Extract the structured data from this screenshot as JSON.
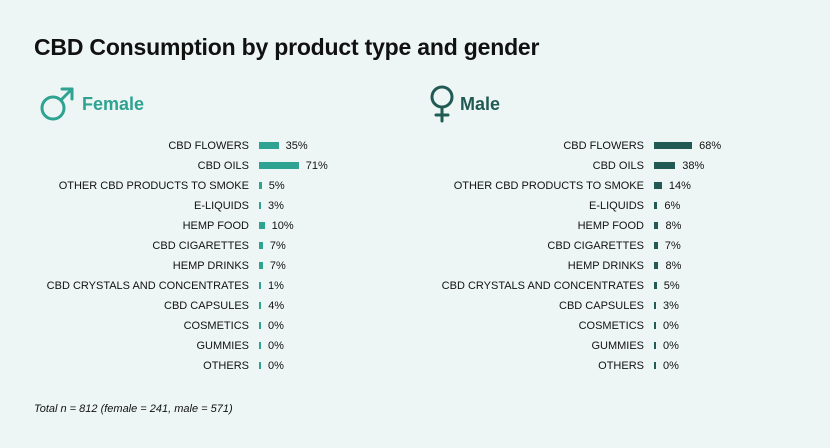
{
  "title": "CBD Consumption by product type and gender",
  "footnote": "Total n = 812 (female = 241, male = 571)",
  "chart_data": [
    {
      "type": "bar",
      "orientation": "horizontal",
      "panel_label": "Female",
      "icon": "mars-symbol-icon",
      "color": "#2fa391",
      "categories": [
        "CBD FLOWERS",
        "CBD OILS",
        "OTHER CBD PRODUCTS TO SMOKE",
        "E-LIQUIDS",
        "HEMP FOOD",
        "CBD CIGARETTES",
        "HEMP DRINKS",
        "CBD CRYSTALS AND CONCENTRATES",
        "CBD CAPSULES",
        "COSMETICS",
        "GUMMIES",
        "OTHERS"
      ],
      "values": [
        35,
        71,
        5,
        3,
        10,
        7,
        7,
        1,
        4,
        0,
        0,
        0
      ],
      "value_labels": [
        "35%",
        "71%",
        "5%",
        "3%",
        "10%",
        "7%",
        "7%",
        "1%",
        "4%",
        "0%",
        "0%",
        "0%"
      ],
      "xlim": [
        0,
        100
      ],
      "grid": false
    },
    {
      "type": "bar",
      "orientation": "horizontal",
      "panel_label": "Male",
      "icon": "venus-symbol-icon",
      "color": "#215a54",
      "categories": [
        "CBD FLOWERS",
        "CBD OILS",
        "OTHER CBD PRODUCTS TO SMOKE",
        "E-LIQUIDS",
        "HEMP FOOD",
        "CBD CIGARETTES",
        "HEMP DRINKS",
        "CBD CRYSTALS AND CONCENTRATES",
        "CBD CAPSULES",
        "COSMETICS",
        "GUMMIES",
        "OTHERS"
      ],
      "values": [
        68,
        38,
        14,
        6,
        8,
        7,
        8,
        5,
        3,
        0,
        0,
        0
      ],
      "value_labels": [
        "68%",
        "38%",
        "14%",
        "6%",
        "8%",
        "7%",
        "8%",
        "5%",
        "3%",
        "0%",
        "0%",
        "0%"
      ],
      "xlim": [
        0,
        100
      ],
      "grid": false
    }
  ]
}
